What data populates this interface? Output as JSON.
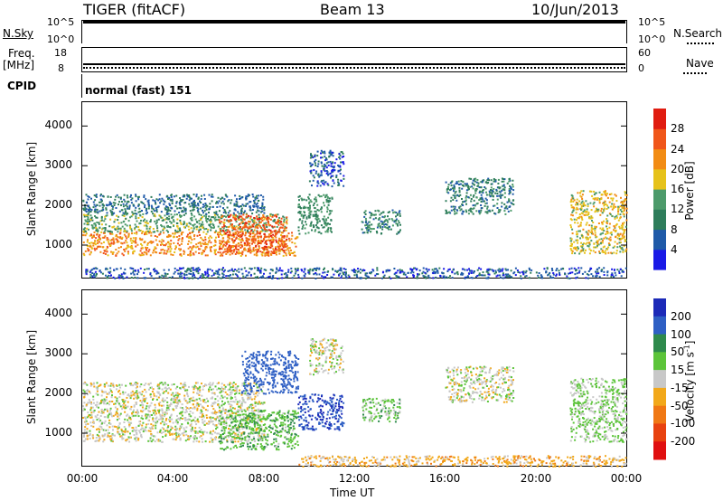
{
  "header": {
    "radar": "TIGER (fitACF)",
    "beam": "Beam 13",
    "date": "10/Jun/2013"
  },
  "top_panels": {
    "nsky_label": "N.Sky",
    "nsky_top": "10^5",
    "nsky_bottom": "10^0",
    "nsearch_top": "10^5",
    "nsearch_bottom": "10^0",
    "nsearch_label": "N.Search",
    "freq_label": "Freq.",
    "freq_unit": "[MHz]",
    "freq_top": "18",
    "freq_bottom": "8",
    "nave_top": "60",
    "nave_bottom": "0",
    "nave_label": "Nave",
    "cpid_label": "CPID",
    "cpid_value": "normal (fast) 151"
  },
  "x_axis": {
    "label": "Time UT",
    "ticks": [
      "00:00",
      "04:00",
      "08:00",
      "12:00",
      "16:00",
      "20:00",
      "00:00"
    ]
  },
  "chart_data": [
    {
      "type": "heatmap",
      "title": "",
      "xlabel": "Time UT",
      "ylabel": "Slant Range [km]",
      "xlim": [
        0,
        24
      ],
      "ylim": [
        180,
        4600
      ],
      "y_ticks": [
        "1000",
        "2000",
        "3000",
        "4000"
      ],
      "y_tick_values": [
        1000,
        2000,
        3000,
        4000
      ],
      "colorbar": {
        "label": "Power [dB]",
        "ticks": [
          "4",
          "8",
          "12",
          "16",
          "20",
          "24",
          "28"
        ],
        "tick_values": [
          4,
          8,
          12,
          16,
          20,
          24,
          28
        ],
        "colors": [
          "#1a1ae6",
          "#1f5aa8",
          "#2e7d5b",
          "#4c9a6a",
          "#e6c21a",
          "#f28c14",
          "#f0561a",
          "#e01c10"
        ]
      },
      "regions": [
        {
          "t": [
            0.0,
            9.5
          ],
          "r": [
            750,
            1350
          ],
          "value": 22
        },
        {
          "t": [
            0.0,
            9.0
          ],
          "r": [
            1350,
            1800
          ],
          "value": 14
        },
        {
          "t": [
            0.0,
            8.0
          ],
          "r": [
            1800,
            2300
          ],
          "value": 8
        },
        {
          "t": [
            6.0,
            9.0
          ],
          "r": [
            800,
            1800
          ],
          "value": 26
        },
        {
          "t": [
            9.5,
            11.0
          ],
          "r": [
            1300,
            2300
          ],
          "value": 12
        },
        {
          "t": [
            10.0,
            11.5
          ],
          "r": [
            2500,
            3400
          ],
          "value": 6
        },
        {
          "t": [
            12.3,
            14.0
          ],
          "r": [
            1300,
            1900
          ],
          "value": 10
        },
        {
          "t": [
            16.0,
            19.0
          ],
          "r": [
            1800,
            2700
          ],
          "value": 10
        },
        {
          "t": [
            21.5,
            24.0
          ],
          "r": [
            800,
            2400
          ],
          "value": 18
        },
        {
          "t": [
            0.0,
            24.0
          ],
          "r": [
            180,
            450
          ],
          "value": 6
        }
      ]
    },
    {
      "type": "heatmap",
      "title": "",
      "xlabel": "Time UT",
      "ylabel": "Slant Range [km]",
      "xlim": [
        0,
        24
      ],
      "ylim": [
        180,
        4600
      ],
      "y_ticks": [
        "1000",
        "2000",
        "3000",
        "4000"
      ],
      "y_tick_values": [
        1000,
        2000,
        3000,
        4000
      ],
      "colorbar": {
        "label": "Velocity [m s",
        "label_sup": "-1",
        "label_end": "]",
        "ticks": [
          "200",
          "100",
          "50",
          "15",
          "-15",
          "-50",
          "-100",
          "-200"
        ],
        "tick_values": [
          200,
          100,
          50,
          15,
          -15,
          -50,
          -100,
          -200
        ],
        "colors": [
          "#1c2ab8",
          "#2e5fc4",
          "#2e8a4c",
          "#5cc43a",
          "#c8c8c8",
          "#f2a81a",
          "#f07814",
          "#e8420f",
          "#e01010"
        ]
      },
      "regions": [
        {
          "t": [
            0.0,
            8.0
          ],
          "r": [
            800,
            2300
          ],
          "value": 0
        },
        {
          "t": [
            6.0,
            9.5
          ],
          "r": [
            600,
            1600
          ],
          "value": 40
        },
        {
          "t": [
            7.0,
            9.5
          ],
          "r": [
            2000,
            3100
          ],
          "value": 150
        },
        {
          "t": [
            9.5,
            11.5
          ],
          "r": [
            1100,
            2000
          ],
          "value": 200
        },
        {
          "t": [
            10.0,
            11.5
          ],
          "r": [
            2500,
            3400
          ],
          "value": 0
        },
        {
          "t": [
            12.3,
            14.0
          ],
          "r": [
            1300,
            1900
          ],
          "value": 30
        },
        {
          "t": [
            16.0,
            19.0
          ],
          "r": [
            1800,
            2700
          ],
          "value": 0
        },
        {
          "t": [
            21.5,
            24.0
          ],
          "r": [
            800,
            2400
          ],
          "value": 20
        },
        {
          "t": [
            9.5,
            24.0
          ],
          "r": [
            180,
            450
          ],
          "value": -30
        }
      ]
    }
  ]
}
